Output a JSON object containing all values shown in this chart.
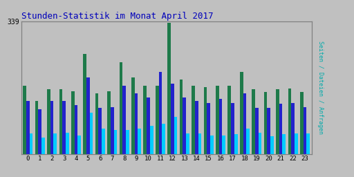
{
  "title": "Stunden-Statistik im Monat April 2017",
  "title_color": "#0000BB",
  "ylabel_right": "Seiten / Dateien / Anfragen",
  "xlabel_values": [
    "0",
    "1",
    "2",
    "3",
    "4",
    "5",
    "6",
    "7",
    "8",
    "9",
    "10",
    "11",
    "12",
    "13",
    "14",
    "15",
    "16",
    "17",
    "18",
    "19",
    "20",
    "21",
    "22",
    "23"
  ],
  "ymax": 339,
  "ytick_label": "339",
  "background_color": "#C0C0C0",
  "plot_bg_color": "#C0C0C0",
  "grid_color": "#A8A8A8",
  "colors": {
    "seiten": "#1E7A4A",
    "dateien": "#2222CC",
    "anfragen": "#00CCFF"
  },
  "seiten": [
    175,
    135,
    165,
    165,
    160,
    255,
    155,
    160,
    235,
    195,
    175,
    175,
    335,
    190,
    175,
    170,
    175,
    175,
    210,
    165,
    158,
    165,
    168,
    158
  ],
  "dateien": [
    135,
    115,
    135,
    135,
    125,
    195,
    118,
    120,
    175,
    155,
    145,
    210,
    180,
    145,
    135,
    130,
    140,
    130,
    155,
    118,
    118,
    128,
    130,
    120
  ],
  "anfragen": [
    52,
    42,
    52,
    55,
    48,
    105,
    65,
    62,
    62,
    65,
    72,
    78,
    95,
    52,
    52,
    48,
    48,
    50,
    65,
    55,
    45,
    50,
    52,
    52
  ]
}
